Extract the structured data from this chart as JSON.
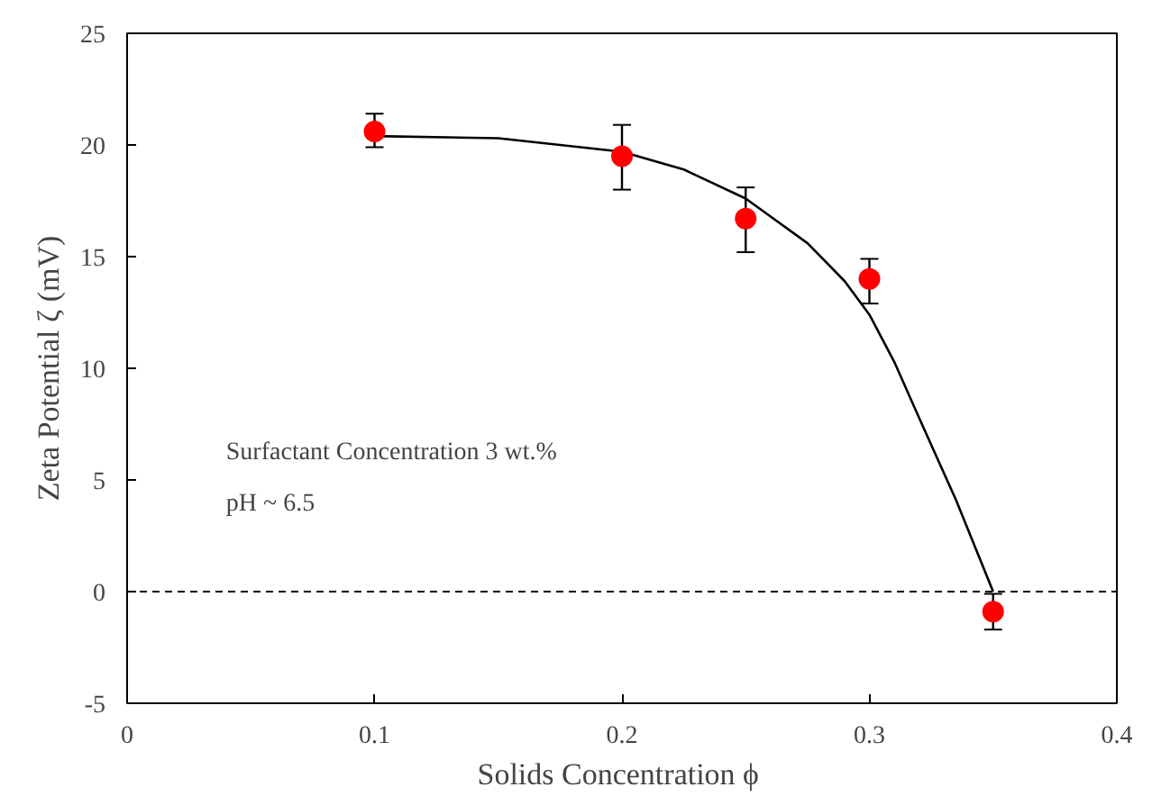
{
  "chart_data": {
    "type": "scatter",
    "xlabel": "Solids Concentration  ϕ",
    "ylabel": "Zeta Potential ζ (mV)",
    "xlim": [
      0,
      0.4
    ],
    "xticks": [
      0,
      0.1,
      0.2,
      0.3,
      0.4
    ],
    "ylim": [
      -5,
      25
    ],
    "yticks": [
      -5,
      0,
      5,
      10,
      15,
      20,
      25
    ],
    "grid": false,
    "series": [
      {
        "color": "#ff0000",
        "marker": "circle",
        "x": [
          0.1,
          0.2,
          0.25,
          0.3,
          0.35
        ],
        "values": [
          20.6,
          19.5,
          16.7,
          14.0,
          -0.9
        ],
        "errors": [
          [
            19.9,
            21.4
          ],
          [
            18.0,
            20.9
          ],
          [
            15.2,
            18.1
          ],
          [
            12.9,
            14.9
          ],
          [
            -1.7,
            -0.1
          ]
        ]
      },
      {
        "type": "line",
        "color": "#000000",
        "line_style": "solid",
        "marker": "none",
        "x": [
          0.1,
          0.15,
          0.2,
          0.225,
          0.25,
          0.275,
          0.29,
          0.3,
          0.31,
          0.32,
          0.335,
          0.35
        ],
        "values": [
          20.4,
          20.3,
          19.7,
          18.9,
          17.6,
          15.6,
          13.9,
          12.4,
          10.3,
          7.8,
          4.1,
          0.0
        ]
      }
    ],
    "ref_lines": [
      {
        "axis": "y",
        "value": 0,
        "line_style": "dashed",
        "color": "#000000"
      }
    ],
    "annotations": [
      "Surfactant Concentration 3 wt.%",
      "pH ~ 6.5"
    ]
  }
}
